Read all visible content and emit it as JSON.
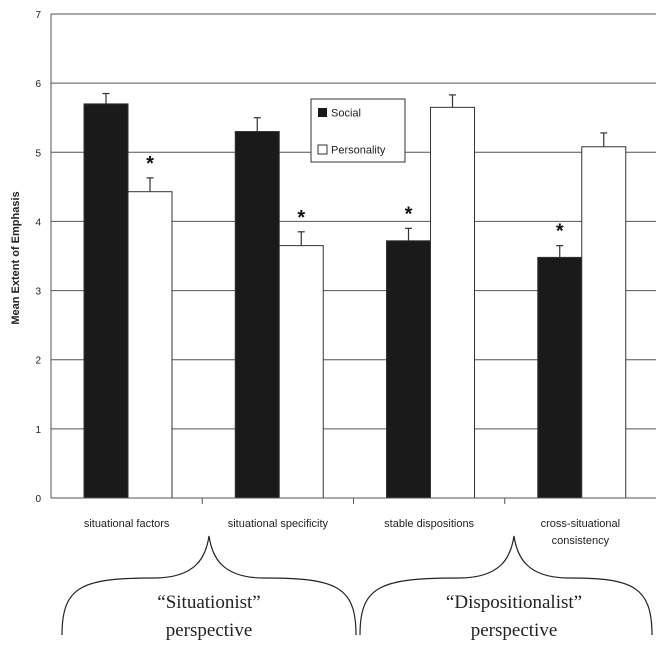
{
  "chart_data": {
    "type": "bar",
    "ylabel": "Mean Extent of Emphasis",
    "ylim": [
      0,
      7
    ],
    "yticks": [
      "0",
      "1",
      "2",
      "3",
      "4",
      "5",
      "6",
      "7"
    ],
    "grid": true,
    "legend_position": "top-center",
    "categories": [
      "situational factors",
      "situational specificity",
      "stable dispositions",
      "cross-situational consistency"
    ],
    "category_lines": [
      [
        "situational factors"
      ],
      [
        "situational specificity"
      ],
      [
        "stable dispositions"
      ],
      [
        "cross-situational",
        "consistency"
      ]
    ],
    "series": [
      {
        "name": "Social",
        "color": "#1a1a1a",
        "values": [
          5.7,
          5.3,
          3.72,
          3.48
        ],
        "errors": [
          0.15,
          0.2,
          0.18,
          0.17
        ]
      },
      {
        "name": "Personality",
        "color": "#ffffff",
        "values": [
          4.43,
          3.65,
          5.65,
          5.08
        ],
        "errors": [
          0.2,
          0.2,
          0.18,
          0.2
        ]
      }
    ],
    "significance": [
      {
        "category_index": 0,
        "series_index": 1,
        "label": "*"
      },
      {
        "category_index": 1,
        "series_index": 1,
        "label": "*"
      },
      {
        "category_index": 2,
        "series_index": 0,
        "label": "*"
      },
      {
        "category_index": 3,
        "series_index": 0,
        "label": "*"
      }
    ],
    "groups": [
      {
        "lines": [
          "“Situationist”",
          "perspective"
        ]
      },
      {
        "lines": [
          "“Dispositionalist”",
          "perspective"
        ]
      }
    ]
  }
}
